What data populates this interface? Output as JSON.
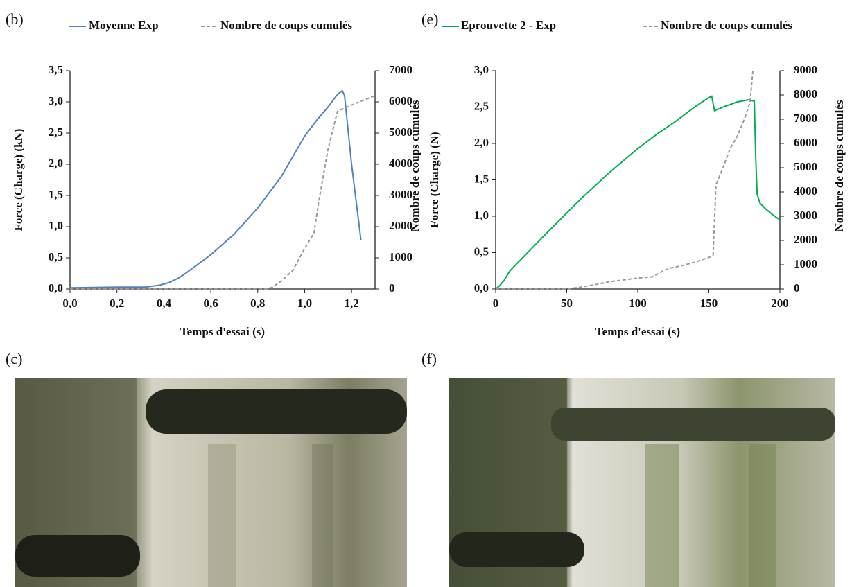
{
  "chart_data": [
    {
      "type": "line",
      "panel_label": "(b)",
      "x_label": "Temps d'essai (s)",
      "y_label": "Force (Charge) (kN)",
      "y2_label": "Nombre de coups cumulés",
      "xlim": [
        0,
        1.3
      ],
      "ylim": [
        0,
        3.5
      ],
      "y2lim": [
        0,
        7000
      ],
      "xticks": [
        {
          "value": 0,
          "label": "0,0"
        },
        {
          "value": 0.2,
          "label": "0,2"
        },
        {
          "value": 0.4,
          "label": "0,4"
        },
        {
          "value": 0.6,
          "label": "0,6"
        },
        {
          "value": 0.8,
          "label": "0,8"
        },
        {
          "value": 1.0,
          "label": "1,0"
        },
        {
          "value": 1.2,
          "label": "1,2"
        }
      ],
      "yticks": [
        {
          "value": 0,
          "label": "0,0"
        },
        {
          "value": 0.5,
          "label": "0,5"
        },
        {
          "value": 1.0,
          "label": "1,0"
        },
        {
          "value": 1.5,
          "label": "1,5"
        },
        {
          "value": 2.0,
          "label": "2,0"
        },
        {
          "value": 2.5,
          "label": "2,5"
        },
        {
          "value": 3.0,
          "label": "3,0"
        },
        {
          "value": 3.5,
          "label": "3,5"
        }
      ],
      "y2ticks": [
        0,
        1000,
        2000,
        3000,
        4000,
        5000,
        6000,
        7000
      ],
      "series": [
        {
          "name": "Moyenne Exp",
          "color": "#4f81bd",
          "dash": false,
          "x": [
            0,
            0.2,
            0.32,
            0.38,
            0.42,
            0.46,
            0.5,
            0.6,
            0.7,
            0.8,
            0.9,
            1.0,
            1.05,
            1.1,
            1.14,
            1.16,
            1.17,
            1.2,
            1.24
          ],
          "values": [
            0.02,
            0.03,
            0.03,
            0.06,
            0.1,
            0.17,
            0.27,
            0.55,
            0.88,
            1.3,
            1.8,
            2.45,
            2.7,
            2.92,
            3.12,
            3.18,
            3.1,
            2.0,
            0.78
          ]
        },
        {
          "name": "Nombre de coups cumulés",
          "color": "#999999",
          "dash": true,
          "axis": "y2",
          "x": [
            0,
            0.83,
            0.86,
            0.9,
            0.95,
            1.0,
            1.04,
            1.06,
            1.1,
            1.14,
            1.2,
            1.3
          ],
          "values": [
            0,
            0,
            50,
            250,
            600,
            1300,
            1800,
            2800,
            4500,
            5700,
            5900,
            6200
          ]
        }
      ]
    },
    {
      "type": "line",
      "panel_label": "(e)",
      "x_label": "Temps d'essai (s)",
      "y_label": "Force (Charge) (N)",
      "y2_label": "Nombre de coups cumulés",
      "xlim": [
        0,
        200
      ],
      "ylim": [
        0,
        3.0
      ],
      "y2lim": [
        0,
        9000
      ],
      "xticks": [
        0,
        50,
        100,
        150,
        200
      ],
      "yticks": [
        {
          "value": 0,
          "label": "0,0"
        },
        {
          "value": 0.5,
          "label": "0,5"
        },
        {
          "value": 1.0,
          "label": "1,0"
        },
        {
          "value": 1.5,
          "label": "1,5"
        },
        {
          "value": 2.0,
          "label": "2,0"
        },
        {
          "value": 2.5,
          "label": "2,5"
        },
        {
          "value": 3.0,
          "label": "3,0"
        }
      ],
      "y2ticks": [
        0,
        1000,
        2000,
        3000,
        4000,
        5000,
        6000,
        7000,
        8000,
        9000
      ],
      "series": [
        {
          "name": "Eprouvette 2 - Exp",
          "color": "#00b050",
          "dash": false,
          "x": [
            0,
            3,
            6,
            10,
            20,
            40,
            60,
            80,
            100,
            115,
            125,
            140,
            150,
            152,
            154,
            160,
            170,
            178,
            182,
            183,
            184,
            186,
            190,
            195,
            200
          ],
          "values": [
            0,
            0.05,
            0.12,
            0.25,
            0.45,
            0.85,
            1.24,
            1.6,
            1.93,
            2.15,
            2.28,
            2.5,
            2.63,
            2.65,
            2.45,
            2.5,
            2.57,
            2.6,
            2.58,
            1.8,
            1.3,
            1.18,
            1.1,
            1.02,
            0.95
          ]
        },
        {
          "name": "Nombre de coups cumulés",
          "color": "#999999",
          "dash": true,
          "axis": "y2",
          "x": [
            0,
            50,
            60,
            70,
            80,
            100,
            110,
            118,
            122,
            130,
            140,
            150,
            153,
            155,
            160,
            165,
            170,
            175,
            179,
            181
          ],
          "values": [
            0,
            0,
            80,
            180,
            300,
            450,
            500,
            750,
            850,
            950,
            1100,
            1300,
            1400,
            4300,
            5000,
            5800,
            6300,
            7000,
            7700,
            9000
          ]
        }
      ]
    }
  ],
  "photo_labels": [
    "(c)",
    "(f)"
  ]
}
